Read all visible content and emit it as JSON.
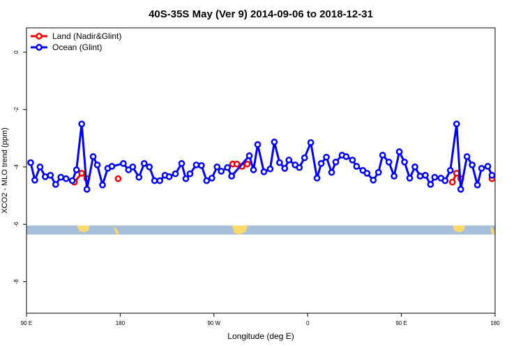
{
  "chart_data": {
    "type": "line",
    "title": "40S-35S May (Ver 9)   2014-09-06 to 2018-12-31",
    "x_label": "Longitude (deg E)",
    "y_label": "XCO2 - MLO trend (ppm)",
    "xlim": [
      90,
      540
    ],
    "xticks": [
      {
        "value": 90,
        "label": "90 E"
      },
      {
        "value": 180,
        "label": "180"
      },
      {
        "value": 270,
        "label": "90 W"
      },
      {
        "value": 360,
        "label": "0"
      },
      {
        "value": 450,
        "label": "90 E"
      },
      {
        "value": 540,
        "label": "180"
      }
    ],
    "ylim": [
      -9.1,
      0.85
    ],
    "yticks": [
      0,
      -2,
      -4,
      -6,
      -8
    ],
    "legend": "top-left",
    "series": [
      {
        "name": "Land (Nadir&Glint)",
        "color": "#ee0000",
        "x": [
          136,
          143,
          148,
          null,
          178,
          null,
          288,
          292,
          297,
          302,
          null,
          499,
          503,
          507,
          null,
          537
        ],
        "values": [
          -4.53,
          -4.22,
          -4.41,
          null,
          -4.41,
          null,
          -3.9,
          -3.9,
          -3.98,
          -3.9,
          null,
          -4.53,
          -4.22,
          -4.41,
          null,
          -4.41
        ]
      },
      {
        "name": "Ocean (Glint)",
        "color": "#0000ee",
        "x": [
          94,
          98,
          103,
          108,
          113,
          118,
          123,
          128,
          134,
          138,
          143,
          148,
          154,
          158,
          163,
          168,
          172,
          183,
          188,
          192,
          198,
          203,
          208,
          213,
          218,
          223,
          227,
          233,
          239,
          243,
          247,
          253,
          258,
          263,
          268,
          273,
          277,
          283,
          287,
          304,
          308,
          312,
          318,
          324,
          328,
          333,
          338,
          342,
          348,
          352,
          357,
          363,
          369,
          373,
          378,
          383,
          387,
          393,
          397,
          403,
          407,
          413,
          417,
          423,
          428,
          432,
          438,
          443,
          448,
          453,
          458,
          463,
          468,
          473,
          478,
          482,
          488,
          492,
          497,
          503,
          507,
          513,
          518,
          523,
          527,
          533,
          537
        ],
        "values": [
          -3.85,
          -4.46,
          -4.0,
          -4.34,
          -4.29,
          -4.61,
          -4.36,
          -4.41,
          -4.48,
          -4.1,
          -2.5,
          -4.78,
          -3.64,
          -3.93,
          -4.63,
          -4.05,
          -3.98,
          -3.88,
          -4.1,
          -4.0,
          -4.36,
          -3.88,
          -4.0,
          -4.48,
          -4.48,
          -4.29,
          -4.34,
          -4.24,
          -3.88,
          -4.41,
          -4.24,
          -3.93,
          -3.95,
          -4.48,
          -4.39,
          -4.0,
          -4.15,
          -4.02,
          -4.32,
          -3.61,
          -4.1,
          -3.22,
          -4.17,
          -4.07,
          -3.13,
          -3.85,
          -4.05,
          -3.76,
          -3.93,
          -4.02,
          -3.68,
          -3.15,
          -4.39,
          -3.88,
          -3.66,
          -4.19,
          -3.83,
          -3.59,
          -3.64,
          -3.76,
          -3.98,
          -4.12,
          -4.22,
          -4.46,
          -4.19,
          -3.59,
          -3.83,
          -4.32,
          -3.47,
          -3.83,
          -4.39,
          -4.0,
          -4.32,
          -4.29,
          -4.61,
          -4.36,
          -4.39,
          -4.48,
          -4.12,
          -2.5,
          -4.78,
          -3.64,
          -3.93,
          -4.63,
          -4.05,
          -3.98,
          -4.29
        ]
      }
    ]
  }
}
